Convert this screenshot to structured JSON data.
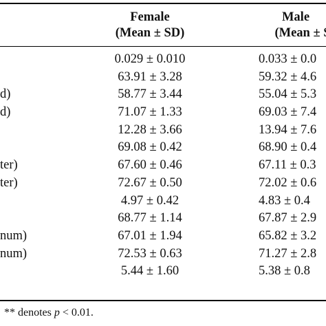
{
  "header": {
    "female": "Female",
    "female_sub": "(Mean ± SD)",
    "male": "Male",
    "male_sub": "(Mean ± S"
  },
  "rows": [
    {
      "label": "",
      "female": "0.029 ± 0.010",
      "male": "0.033 ± 0.0"
    },
    {
      "label": "",
      "female": "63.91 ± 3.28",
      "male": "59.32 ± 4.6"
    },
    {
      "label": "d)",
      "female": "58.77 ± 3.44",
      "male": "55.04 ± 5.3"
    },
    {
      "label": "d)",
      "female": "71.07 ± 1.33",
      "male": "69.03 ± 7.4"
    },
    {
      "label": "",
      "female": "12.28 ± 3.66",
      "male": "13.94 ± 7.6"
    },
    {
      "label": "",
      "female": "69.08 ± 0.42",
      "male": "68.90 ± 0.4"
    },
    {
      "label": "ter)",
      "female": "67.60 ± 0.46",
      "male": "67.11 ± 0.3"
    },
    {
      "label": "ter)",
      "female": "72.67 ± 0.50",
      "male": "72.02 ± 0.6"
    },
    {
      "label": "",
      "female": "4.97 ± 0.42",
      "male": "4.83 ± 0.4"
    },
    {
      "label": "",
      "female": "68.77 ± 1.14",
      "male": "67.87 ± 2.9"
    },
    {
      "label": "num)",
      "female": "67.01 ± 1.94",
      "male": "65.82 ± 3.2"
    },
    {
      "label": "num)",
      "female": "72.53 ± 0.63",
      "male": "71.27 ± 2.8"
    },
    {
      "label": "",
      "female": "5.44 ± 1.60",
      "male": "5.38 ± 0.8"
    }
  ],
  "note": {
    "prefix": "** denotes ",
    "p": "p",
    "suffix": " < 0.01."
  }
}
